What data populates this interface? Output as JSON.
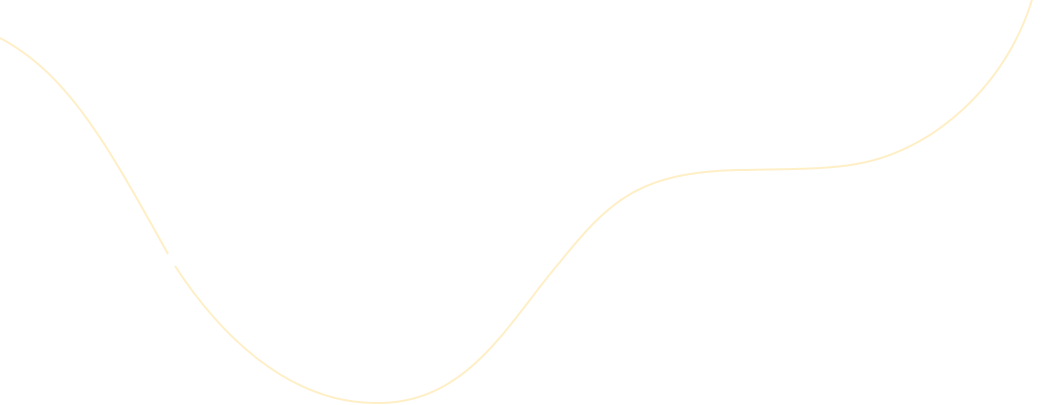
{
  "background": {
    "color": "#ffffff"
  },
  "decoration": {
    "line_color": "#FFEFC6"
  }
}
